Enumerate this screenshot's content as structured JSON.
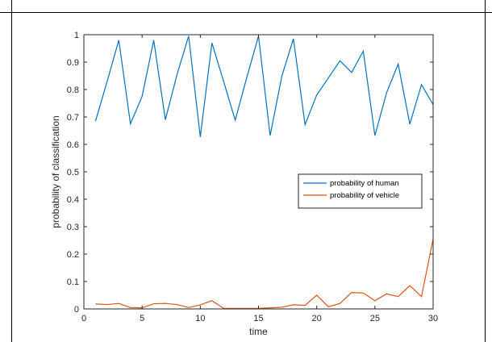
{
  "chart_data": {
    "type": "line",
    "title": "",
    "xlabel": "time",
    "ylabel": "probability of classification",
    "xlim": [
      0,
      30
    ],
    "ylim": [
      0,
      1
    ],
    "xticks": [
      0,
      5,
      10,
      15,
      20,
      25,
      30
    ],
    "yticks": [
      0,
      0.1,
      0.2,
      0.3,
      0.4,
      0.5,
      0.6,
      0.7,
      0.8,
      0.9,
      1
    ],
    "grid": false,
    "legend_position": "right",
    "x": [
      1,
      2,
      3,
      4,
      5,
      6,
      7,
      8,
      9,
      10,
      11,
      12,
      13,
      14,
      15,
      16,
      17,
      18,
      19,
      20,
      21,
      22,
      23,
      24,
      25,
      26,
      27,
      28,
      29,
      30
    ],
    "series": [
      {
        "name": "probability of human",
        "color": "#0072BD",
        "values": [
          0.685,
          0.83,
          0.98,
          0.675,
          0.775,
          0.98,
          0.69,
          0.855,
          0.995,
          0.627,
          0.97,
          0.83,
          0.688,
          0.845,
          0.995,
          0.632,
          0.848,
          0.985,
          0.672,
          0.78,
          0.842,
          0.905,
          0.862,
          0.94,
          0.632,
          0.788,
          0.893,
          0.674,
          0.818,
          0.745
        ]
      },
      {
        "name": "probability of vehicle",
        "color": "#D95319",
        "values": [
          0.018,
          0.016,
          0.02,
          0.005,
          0.004,
          0.019,
          0.02,
          0.016,
          0.005,
          0.015,
          0.03,
          0.002,
          0.002,
          0.002,
          0.002,
          0.004,
          0.006,
          0.015,
          0.013,
          0.05,
          0.008,
          0.02,
          0.06,
          0.058,
          0.03,
          0.055,
          0.045,
          0.085,
          0.045,
          0.255
        ]
      }
    ]
  }
}
